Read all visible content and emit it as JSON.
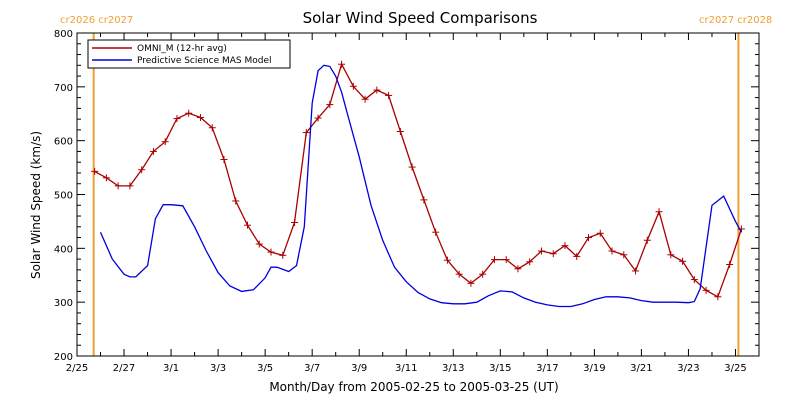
{
  "colors": {
    "omni": "#aa0000",
    "model": "#0000dd",
    "cr_marker": "#f0a030",
    "axis": "#000000"
  },
  "cr_labels": {
    "left": "cr2026 cr2027",
    "right": "cr2027 cr2028"
  },
  "chart_data": {
    "type": "line",
    "title": "Solar Wind Speed Comparisons",
    "xlabel": "Month/Day from 2005-02-25 to 2005-03-25 (UT)",
    "ylabel": "Solar Wind Speed (km/s)",
    "xlim": [
      "2005-02-25",
      "2005-03-26"
    ],
    "ylim": [
      200,
      800
    ],
    "x_tick_labels": [
      "2/25",
      "2/27",
      "3/1",
      "3/3",
      "3/5",
      "3/7",
      "3/9",
      "3/11",
      "3/13",
      "3/15",
      "3/17",
      "3/19",
      "3/21",
      "3/23",
      "3/25"
    ],
    "y_tick_labels": [
      "200",
      "300",
      "400",
      "500",
      "600",
      "700",
      "800"
    ],
    "y_ticks": [
      200,
      300,
      400,
      500,
      600,
      700,
      800
    ],
    "legend": {
      "position": "top-left"
    },
    "cr_boundaries": [
      "2005-02-25T17:00",
      "2005-03-25T03:00"
    ],
    "series": [
      {
        "name": "OMNI_M (12-hr avg)",
        "marker": "plus",
        "x": [
          "2005-02-25T18:00",
          "2005-02-26T06:00",
          "2005-02-26T18:00",
          "2005-02-27T06:00",
          "2005-02-27T18:00",
          "2005-02-28T06:00",
          "2005-02-28T18:00",
          "2005-03-01T06:00",
          "2005-03-01T18:00",
          "2005-03-02T06:00",
          "2005-03-02T18:00",
          "2005-03-03T06:00",
          "2005-03-03T18:00",
          "2005-03-04T06:00",
          "2005-03-04T18:00",
          "2005-03-05T06:00",
          "2005-03-05T18:00",
          "2005-03-06T06:00",
          "2005-03-06T18:00",
          "2005-03-07T06:00",
          "2005-03-07T18:00",
          "2005-03-08T06:00",
          "2005-03-08T18:00",
          "2005-03-09T06:00",
          "2005-03-09T18:00",
          "2005-03-10T06:00",
          "2005-03-10T18:00",
          "2005-03-11T06:00",
          "2005-03-11T18:00",
          "2005-03-12T06:00",
          "2005-03-12T18:00",
          "2005-03-13T06:00",
          "2005-03-13T18:00",
          "2005-03-14T06:00",
          "2005-03-14T18:00",
          "2005-03-15T06:00",
          "2005-03-15T18:00",
          "2005-03-16T06:00",
          "2005-03-16T18:00",
          "2005-03-17T06:00",
          "2005-03-17T18:00",
          "2005-03-18T06:00",
          "2005-03-18T18:00",
          "2005-03-19T06:00",
          "2005-03-19T18:00",
          "2005-03-20T06:00",
          "2005-03-20T18:00",
          "2005-03-21T06:00",
          "2005-03-21T18:00",
          "2005-03-22T06:00",
          "2005-03-22T18:00",
          "2005-03-23T06:00",
          "2005-03-23T18:00",
          "2005-03-24T06:00",
          "2005-03-24T18:00",
          "2005-03-25T06:00"
        ],
        "values": [
          543,
          531,
          516,
          516,
          546,
          580,
          598,
          641,
          651,
          643,
          624,
          565,
          488,
          443,
          408,
          393,
          387,
          448,
          615,
          642,
          667,
          742,
          701,
          677,
          694,
          684,
          617,
          551,
          490,
          430,
          378,
          352,
          335,
          352,
          379,
          379,
          362,
          375,
          395,
          390,
          405,
          385,
          420,
          428,
          395,
          388,
          358,
          415,
          468,
          388,
          376,
          342,
          322,
          310,
          370,
          436
        ]
      },
      {
        "name": "Predictive Science MAS Model",
        "x": [
          "2005-02-26T00:00",
          "2005-02-26T12:00",
          "2005-02-27T00:00",
          "2005-02-27T06:00",
          "2005-02-27T12:00",
          "2005-02-28T00:00",
          "2005-02-28T08:00",
          "2005-02-28T16:00",
          "2005-03-01T00:00",
          "2005-03-01T12:00",
          "2005-03-02T00:00",
          "2005-03-02T12:00",
          "2005-03-03T00:00",
          "2005-03-03T12:00",
          "2005-03-04T00:00",
          "2005-03-04T12:00",
          "2005-03-05T00:00",
          "2005-03-05T06:00",
          "2005-03-05T12:00",
          "2005-03-06T00:00",
          "2005-03-06T08:00",
          "2005-03-06T16:00",
          "2005-03-07T00:00",
          "2005-03-07T06:00",
          "2005-03-07T12:00",
          "2005-03-07T18:00",
          "2005-03-08T00:00",
          "2005-03-08T06:00",
          "2005-03-08T12:00",
          "2005-03-09T00:00",
          "2005-03-09T12:00",
          "2005-03-10T00:00",
          "2005-03-10T12:00",
          "2005-03-11T00:00",
          "2005-03-11T12:00",
          "2005-03-12T00:00",
          "2005-03-12T12:00",
          "2005-03-13T00:00",
          "2005-03-13T12:00",
          "2005-03-14T00:00",
          "2005-03-14T12:00",
          "2005-03-15T00:00",
          "2005-03-15T12:00",
          "2005-03-16T00:00",
          "2005-03-16T12:00",
          "2005-03-17T00:00",
          "2005-03-17T12:00",
          "2005-03-18T00:00",
          "2005-03-18T12:00",
          "2005-03-19T00:00",
          "2005-03-19T12:00",
          "2005-03-20T00:00",
          "2005-03-20T12:00",
          "2005-03-21T00:00",
          "2005-03-21T12:00",
          "2005-03-22T00:00",
          "2005-03-22T12:00",
          "2005-03-23T00:00",
          "2005-03-23T06:00",
          "2005-03-23T12:00",
          "2005-03-24T00:00",
          "2005-03-24T12:00",
          "2005-03-25T00:00",
          "2005-03-25T06:00"
        ],
        "values": [
          430,
          380,
          352,
          347,
          347,
          368,
          455,
          481,
          481,
          479,
          440,
          395,
          355,
          330,
          320,
          323,
          345,
          365,
          365,
          357,
          368,
          440,
          670,
          730,
          740,
          738,
          720,
          690,
          650,
          570,
          480,
          415,
          365,
          338,
          318,
          306,
          299,
          297,
          297,
          300,
          312,
          321,
          319,
          308,
          300,
          295,
          292,
          292,
          297,
          305,
          310,
          310,
          308,
          303,
          300,
          300,
          300,
          299,
          301,
          325,
          480,
          497,
          450,
          430
        ]
      }
    ]
  }
}
